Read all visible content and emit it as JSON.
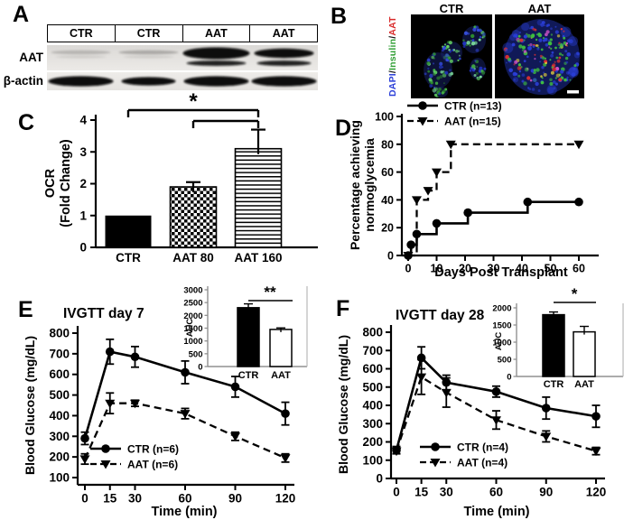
{
  "panel_a": {
    "label": "A",
    "lanes": [
      "CTR",
      "CTR",
      "AAT",
      "AAT"
    ],
    "row_labels": [
      "AAT",
      "β-actin"
    ],
    "band_pattern": {
      "aat_row": [
        "faint",
        "faint",
        "strong",
        "strong"
      ],
      "actin_row": [
        "strong",
        "strong",
        "strong",
        "strong"
      ]
    }
  },
  "panel_b": {
    "label": "B",
    "image_titles": [
      "CTR",
      "AAT"
    ],
    "stain_legend": [
      {
        "text": "DAPI",
        "color": "#2b3fd8"
      },
      {
        "text": "/",
        "color": "#111111"
      },
      {
        "text": "Insulin",
        "color": "#2f9e33"
      },
      {
        "text": "/",
        "color": "#d92a2a"
      },
      {
        "text": "AAT",
        "color": "#d92a2a"
      }
    ],
    "scale_bar": true
  },
  "chart_data": [
    {
      "panel": "C",
      "type": "bar",
      "ylabel_lines": [
        "OCR",
        "(Fold Change)"
      ],
      "ylim": [
        0,
        4
      ],
      "yticks": [
        0,
        1,
        2,
        3,
        4
      ],
      "categories": [
        "CTR",
        "AAT 80",
        "AAT 160"
      ],
      "values": [
        1.0,
        1.9,
        3.1
      ],
      "errors": [
        0,
        0.15,
        0.6
      ],
      "bar_styles": [
        "black",
        "checker",
        "hlines"
      ],
      "significance": [
        {
          "from": "CTR",
          "to": "AAT 160",
          "label": "*"
        },
        {
          "from": "AAT 80",
          "to": "AAT 160",
          "label": ""
        }
      ]
    },
    {
      "panel": "D",
      "type": "step",
      "xlabel": "Days Post Transplant",
      "ylabel_lines": [
        "Percentage achieving",
        "normoglycemia"
      ],
      "xlim": [
        0,
        60
      ],
      "ylim": [
        0,
        100
      ],
      "xticks": [
        0,
        10,
        20,
        30,
        40,
        50,
        60
      ],
      "yticks": [
        0,
        20,
        40,
        60,
        80,
        100
      ],
      "legend_position": "top-left",
      "series": [
        {
          "name": "CTR (n=13)",
          "line": "solid",
          "marker": "circle",
          "x": [
            0,
            1,
            3,
            10,
            21,
            42,
            60
          ],
          "y": [
            0,
            7.7,
            15.4,
            23.1,
            30.8,
            38.5,
            38.5
          ]
        },
        {
          "name": "AAT (n=15)",
          "line": "dashed",
          "marker": "triangle",
          "x": [
            0,
            3,
            7,
            10,
            15,
            60
          ],
          "y": [
            0,
            40,
            46.7,
            60,
            80,
            80
          ]
        }
      ]
    },
    {
      "panel": "E",
      "type": "line",
      "title": "IVGTT day 7",
      "xlabel": "Time (min)",
      "ylabel_lines": [
        "Blood Glucose (mg/dL)"
      ],
      "xlim": [
        0,
        120
      ],
      "ylim": [
        100,
        800
      ],
      "xticks": [
        0,
        15,
        30,
        60,
        90,
        120
      ],
      "yticks": [
        100,
        200,
        300,
        400,
        500,
        600,
        700,
        800
      ],
      "series": [
        {
          "name": "CTR (n=6)",
          "line": "solid",
          "marker": "circle",
          "x": [
            0,
            15,
            30,
            60,
            90,
            120
          ],
          "y": [
            290,
            710,
            685,
            610,
            540,
            410
          ],
          "err": [
            30,
            60,
            50,
            55,
            50,
            55
          ]
        },
        {
          "name": "AAT (n=6)",
          "line": "dashed",
          "marker": "triangle",
          "x": [
            0,
            15,
            30,
            60,
            90,
            120
          ],
          "y": [
            190,
            460,
            460,
            410,
            300,
            195
          ],
          "err": [
            25,
            50,
            15,
            25,
            20,
            20
          ]
        }
      ],
      "inset": {
        "type": "bar",
        "ylabel": "AUC",
        "ylim": [
          0,
          3000
        ],
        "yticks": [
          0,
          500,
          1000,
          1500,
          2000,
          2500,
          3000
        ],
        "categories": [
          "CTR",
          "AAT"
        ],
        "values": [
          2300,
          1450
        ],
        "errors": [
          150,
          60
        ],
        "bar_styles": [
          "black",
          "white"
        ],
        "sig_label": "**"
      }
    },
    {
      "panel": "F",
      "type": "line",
      "title": "IVGTT day 28",
      "xlabel": "Time (min)",
      "ylabel_lines": [
        "Blood Glucose (mg/dL)"
      ],
      "xlim": [
        0,
        120
      ],
      "ylim": [
        0,
        800
      ],
      "xticks": [
        0,
        15,
        30,
        60,
        90,
        120
      ],
      "yticks": [
        0,
        100,
        200,
        300,
        400,
        500,
        600,
        700,
        800
      ],
      "series": [
        {
          "name": "CTR (n=4)",
          "line": "solid",
          "marker": "circle",
          "x": [
            0,
            15,
            30,
            60,
            90,
            120
          ],
          "y": [
            155,
            660,
            525,
            475,
            385,
            340
          ],
          "err": [
            20,
            60,
            40,
            30,
            60,
            60
          ]
        },
        {
          "name": "AAT (n=4)",
          "line": "dashed",
          "marker": "triangle",
          "x": [
            0,
            15,
            30,
            60,
            90,
            120
          ],
          "y": [
            150,
            555,
            470,
            320,
            230,
            150
          ],
          "err": [
            15,
            95,
            80,
            50,
            30,
            20
          ]
        }
      ],
      "inset": {
        "type": "bar",
        "ylabel": "AUC",
        "ylim": [
          0,
          2000
        ],
        "yticks": [
          0,
          500,
          1000,
          1500,
          2000
        ],
        "categories": [
          "CTR",
          "AAT"
        ],
        "values": [
          1800,
          1300
        ],
        "errors": [
          80,
          160
        ],
        "bar_styles": [
          "black",
          "white"
        ],
        "sig_label": "*"
      }
    }
  ]
}
